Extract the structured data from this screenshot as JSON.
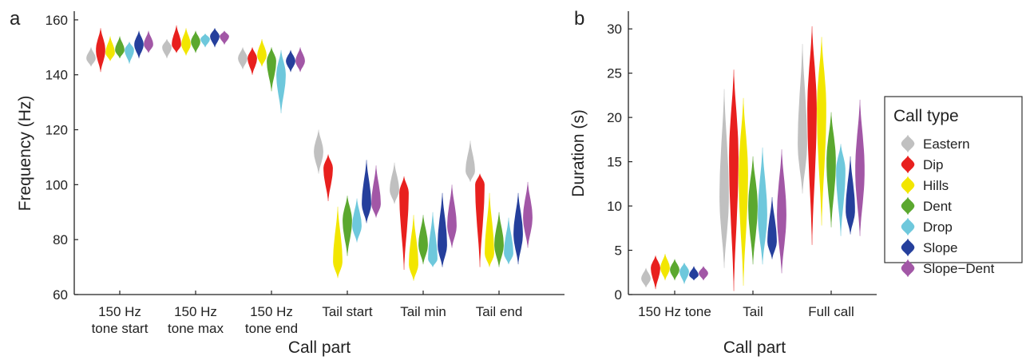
{
  "series": [
    {
      "name": "Eastern",
      "color": "#c0c0c0"
    },
    {
      "name": "Dip",
      "color": "#e8201e"
    },
    {
      "name": "Hills",
      "color": "#f2e600"
    },
    {
      "name": "Dent",
      "color": "#5ba82f"
    },
    {
      "name": "Drop",
      "color": "#6ec8dc"
    },
    {
      "name": "Slope",
      "color": "#253f9c"
    },
    {
      "name": "Slope−Dent",
      "color": "#a257a6"
    }
  ],
  "legend": {
    "title": "Call type",
    "placement": "right of panel b"
  },
  "chart_data": [
    {
      "type": "violin",
      "panel": "a",
      "xlabel": "Call part",
      "ylabel": "Frequency (Hz)",
      "ylim": [
        60,
        162
      ],
      "yticks": [
        60,
        80,
        100,
        120,
        140,
        160
      ],
      "categories": [
        [
          "150 Hz",
          "tone start"
        ],
        [
          "150 Hz",
          "tone max"
        ],
        [
          "150 Hz",
          "tone end"
        ],
        [
          "Tail start"
        ],
        [
          "Tail min"
        ],
        [
          "Tail end"
        ]
      ],
      "distributions": [
        [
          [
            143,
            146,
            150
          ],
          [
            141,
            149,
            157
          ],
          [
            145,
            148,
            154
          ],
          [
            146,
            149,
            154
          ],
          [
            144,
            149,
            152
          ],
          [
            146,
            151,
            156
          ],
          [
            148,
            151,
            156
          ]
        ],
        [
          [
            146,
            150,
            153
          ],
          [
            148,
            151,
            158
          ],
          [
            147,
            151,
            157
          ],
          [
            148,
            152,
            156
          ],
          [
            150,
            153,
            155
          ],
          [
            150,
            154,
            157
          ],
          [
            151,
            154,
            156
          ]
        ],
        [
          [
            142,
            146,
            150
          ],
          [
            140,
            146,
            150
          ],
          [
            143,
            147,
            153
          ],
          [
            134,
            145,
            150
          ],
          [
            126,
            140,
            149
          ],
          [
            141,
            145,
            149
          ],
          [
            141,
            145,
            150
          ]
        ],
        [
          [
            104,
            112,
            120
          ],
          [
            94,
            106,
            111
          ],
          [
            66,
            72,
            92
          ],
          [
            74,
            87,
            96
          ],
          [
            79,
            85,
            95
          ],
          [
            86,
            93,
            109
          ],
          [
            88,
            93,
            107
          ]
        ],
        [
          [
            93,
            98,
            108
          ],
          [
            69,
            97,
            103
          ],
          [
            65,
            71,
            89
          ],
          [
            71,
            78,
            89
          ],
          [
            70,
            73,
            90
          ],
          [
            70,
            78,
            97
          ],
          [
            77,
            85,
            100
          ]
        ],
        [
          [
            101,
            105,
            116
          ],
          [
            70,
            100,
            104
          ],
          [
            70,
            75,
            97
          ],
          [
            70,
            78,
            90
          ],
          [
            71,
            75,
            88
          ],
          [
            71,
            82,
            97
          ],
          [
            77,
            88,
            101
          ]
        ]
      ]
    },
    {
      "type": "violin",
      "panel": "b",
      "xlabel": "Call part",
      "ylabel": "Duration (s)",
      "ylim": [
        0,
        32
      ],
      "yticks": [
        0,
        5,
        10,
        15,
        20,
        25,
        30
      ],
      "categories": [
        [
          "150 Hz tone"
        ],
        [
          "Tail"
        ],
        [
          "Full call"
        ]
      ],
      "distributions": [
        [
          [
            0.8,
            1.8,
            3.0
          ],
          [
            0.6,
            3.0,
            4.4
          ],
          [
            1.6,
            3.0,
            4.6
          ],
          [
            1.6,
            2.8,
            4.0
          ],
          [
            1.2,
            2.6,
            3.6
          ],
          [
            1.6,
            2.2,
            3.2
          ],
          [
            1.6,
            2.4,
            3.2
          ]
        ],
        [
          [
            3.0,
            11,
            23.2
          ],
          [
            0.4,
            15.5,
            25.4
          ],
          [
            1.0,
            13.5,
            22.2
          ],
          [
            3.4,
            10,
            15.6
          ],
          [
            3.4,
            9,
            16.6
          ],
          [
            4.0,
            6,
            11.0
          ],
          [
            2.4,
            9,
            16.4
          ]
        ],
        [
          [
            11.4,
            17,
            28.3
          ],
          [
            5.6,
            21,
            30.3
          ],
          [
            7.8,
            21,
            29.1
          ],
          [
            7.6,
            15,
            20.6
          ],
          [
            6.6,
            14,
            17.0
          ],
          [
            6.8,
            9.5,
            15.6
          ],
          [
            6.6,
            14,
            22.0
          ]
        ]
      ]
    }
  ]
}
